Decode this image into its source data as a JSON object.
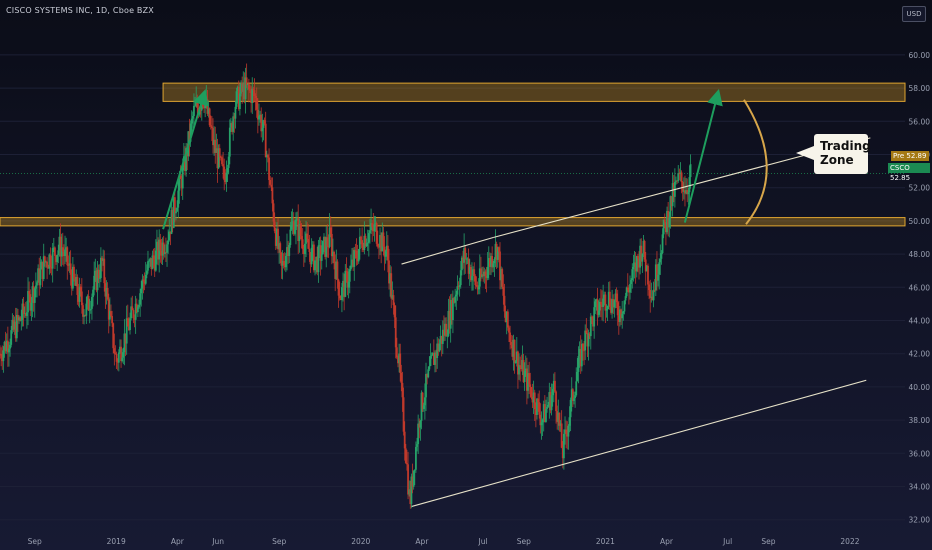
{
  "header": {
    "symbol_title": "CISCO SYSTEMS INC, 1D, Cboe BZX",
    "currency": "USD"
  },
  "annotations": {
    "trading_zone": "Trading\nZone",
    "pre_label": "Pre",
    "pre_price": "52.89",
    "csco_label": "CSCO",
    "csco_price": "52.85"
  },
  "colors": {
    "background": "#0f1120",
    "up_candle": "#26a269",
    "down_candle": "#c0392b",
    "zone_fill": "#c8901f",
    "trendline": "#e6e1c8",
    "arrow": "#1e9e5e",
    "arc": "#d7a64a"
  },
  "chart_data": {
    "type": "candlestick",
    "title": "CISCO SYSTEMS INC, 1D, Cboe BZX",
    "ylim": [
      31.5,
      61.5
    ],
    "y_ticks": [
      32.0,
      34.0,
      36.0,
      38.0,
      40.0,
      42.0,
      44.0,
      46.0,
      48.0,
      50.0,
      52.0,
      54.0,
      56.0,
      58.0,
      60.0
    ],
    "x_ticks": [
      "Sep",
      "2019",
      "Apr",
      "Jun",
      "Sep",
      "2020",
      "Apr",
      "Jul",
      "Sep",
      "2021",
      "Apr",
      "Jul",
      "Sep",
      "2022"
    ],
    "x_tick_positions": [
      0.5,
      4.5,
      7.5,
      9.5,
      12.5,
      16.5,
      19.5,
      22.5,
      24.5,
      28.5,
      31.5,
      34.5,
      36.5,
      40.5
    ],
    "xlim": [
      -1.2,
      43.2
    ],
    "price_path": [
      [
        -1.2,
        42.0
      ],
      [
        0,
        44.5
      ],
      [
        1,
        47.5
      ],
      [
        1.8,
        48.5
      ],
      [
        2.5,
        46.0
      ],
      [
        3,
        44.5
      ],
      [
        3.8,
        47.5
      ],
      [
        4.5,
        41.5
      ],
      [
        5.2,
        44.0
      ],
      [
        6,
        47.0
      ],
      [
        7,
        49.0
      ],
      [
        7.8,
        53.0
      ],
      [
        8.3,
        56.5
      ],
      [
        8.8,
        57.5
      ],
      [
        9.3,
        54.5
      ],
      [
        9.8,
        52.5
      ],
      [
        10.3,
        57.0
      ],
      [
        10.8,
        58.0
      ],
      [
        11.3,
        57.5
      ],
      [
        11.8,
        55.0
      ],
      [
        12.3,
        49.5
      ],
      [
        12.6,
        47.0
      ],
      [
        13.2,
        50.0
      ],
      [
        13.6,
        49.0
      ],
      [
        14.3,
        47.5
      ],
      [
        15.0,
        49.0
      ],
      [
        15.5,
        45.5
      ],
      [
        16.0,
        47.0
      ],
      [
        16.6,
        49.0
      ],
      [
        17.2,
        49.5
      ],
      [
        17.8,
        48.0
      ],
      [
        18.4,
        41.0
      ],
      [
        18.9,
        33.0
      ],
      [
        19.4,
        38.5
      ],
      [
        20.0,
        41.5
      ],
      [
        20.8,
        44.0
      ],
      [
        21.6,
        48.0
      ],
      [
        22.2,
        46.0
      ],
      [
        22.8,
        47.5
      ],
      [
        23.2,
        48.5
      ],
      [
        23.6,
        44.0
      ],
      [
        24.2,
        41.5
      ],
      [
        24.8,
        40.0
      ],
      [
        25.4,
        38.0
      ],
      [
        26.0,
        40.0
      ],
      [
        26.4,
        36.0
      ],
      [
        26.9,
        39.5
      ],
      [
        27.4,
        42.5
      ],
      [
        28.0,
        44.5
      ],
      [
        28.6,
        45.5
      ],
      [
        29.2,
        44.5
      ],
      [
        29.8,
        46.5
      ],
      [
        30.3,
        48.5
      ],
      [
        30.8,
        45.5
      ],
      [
        31.3,
        49.0
      ],
      [
        31.8,
        51.5
      ],
      [
        32.1,
        52.5
      ],
      [
        32.5,
        52.0
      ],
      [
        32.7,
        52.9
      ]
    ],
    "zones": [
      {
        "low": 57.2,
        "high": 58.3,
        "x_start": 6.8,
        "x_end": 43.2
      },
      {
        "low": 49.7,
        "high": 50.2,
        "x_start": -1.2,
        "x_end": 43.2
      }
    ],
    "trendlines": [
      {
        "x1": 18.5,
        "y1": 47.4,
        "x2": 23.0,
        "y2": 49.0
      },
      {
        "x1": 23.0,
        "y1": 49.0,
        "x2": 41.5,
        "y2": 55.0
      },
      {
        "x1": 19.0,
        "y1": 32.8,
        "x2": 41.3,
        "y2": 40.4
      }
    ],
    "projection_arrows": [
      {
        "x1": 6.8,
        "y1": 49.5,
        "x2": 8.8,
        "y2": 57.6
      },
      {
        "x1": 32.4,
        "y1": 49.9,
        "x2": 34.0,
        "y2": 57.6
      }
    ],
    "arc": {
      "x_top": 35.3,
      "y_top": 57.3,
      "x_mid": 36.4,
      "y_mid": 53.0,
      "x_bottom": 35.4,
      "y_bottom": 49.8
    },
    "current_price": 52.85
  }
}
